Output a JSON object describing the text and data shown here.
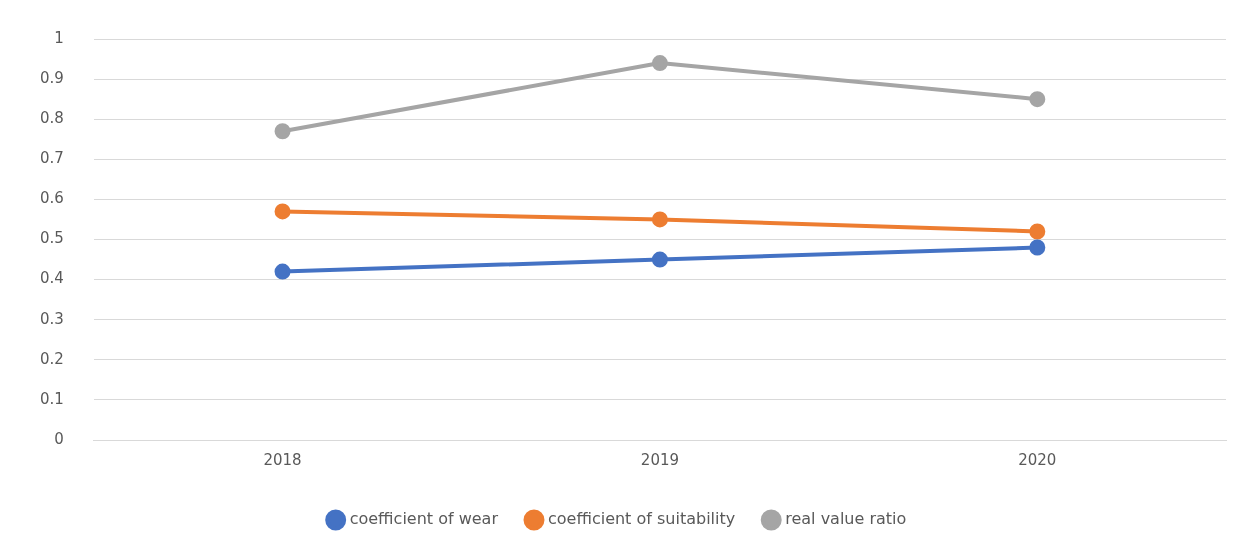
{
  "chart_data": {
    "type": "line",
    "categories": [
      "2018",
      "2019",
      "2020"
    ],
    "series": [
      {
        "name": "coefficient of wear",
        "color": "#4472c4",
        "values": [
          0.42,
          0.45,
          0.48
        ]
      },
      {
        "name": "coefficient of suitability",
        "color": "#ed7d31",
        "values": [
          0.57,
          0.55,
          0.52
        ]
      },
      {
        "name": "real value ratio",
        "color": "#a5a5a5",
        "values": [
          0.77,
          0.94,
          0.85
        ]
      }
    ],
    "ylim": [
      0,
      1
    ],
    "yticks": [
      0,
      0.1,
      0.2,
      0.3,
      0.4,
      0.5,
      0.6,
      0.7,
      0.8,
      0.9,
      1
    ],
    "grid": "y",
    "legend": "bottom",
    "marker": "circle",
    "line_style": "solid"
  }
}
